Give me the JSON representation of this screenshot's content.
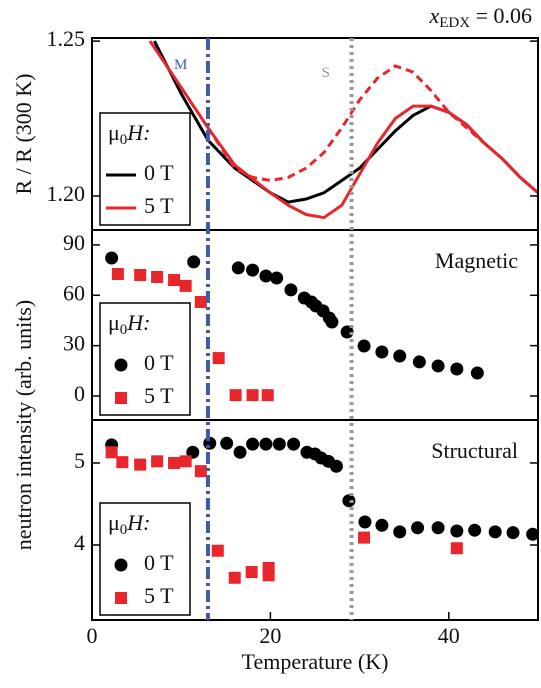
{
  "chart_data": [
    {
      "type": "line",
      "annotation": {
        "text": "x",
        "sub": "EDX",
        "rest": " = 0.06"
      },
      "y_label": "R / R (300 K)",
      "xlim": [
        0,
        50
      ],
      "ylim": [
        1.189,
        1.251
      ],
      "yticks": [
        {
          "value": 1.2,
          "label": "1.20"
        },
        1.25
      ],
      "vlines": [
        {
          "label": "T",
          "sub": "M",
          "x": 13,
          "color": "#3e5ba9",
          "style": "dashdot"
        },
        {
          "label": "T",
          "sub": "S",
          "x": 29.1,
          "color": "#999999",
          "style": "dotted"
        }
      ],
      "legend_title": {
        "text": "μ",
        "sub": "0",
        "rest": "H:"
      },
      "legend": "lower left",
      "series": [
        {
          "name": "0 T",
          "color": "#000000",
          "x": [
            7,
            10,
            13,
            16,
            20,
            22,
            24,
            26,
            28,
            30,
            32,
            34,
            36,
            38,
            40,
            42,
            44,
            46,
            48,
            50
          ],
          "values": [
            1.25,
            1.233,
            1.218,
            1.209,
            1.201,
            1.198,
            1.199,
            1.201,
            1.205,
            1.209,
            1.215,
            1.221,
            1.226,
            1.229,
            1.227,
            1.223,
            1.217,
            1.212,
            1.206,
            1.201
          ]
        },
        {
          "name": "5 T",
          "color": "#e8262b",
          "x": [
            6.5,
            10,
            13,
            16,
            20,
            22,
            24,
            26,
            28,
            30,
            32,
            34,
            36,
            38,
            40,
            42,
            44,
            46,
            48,
            50
          ],
          "values": [
            1.25,
            1.235,
            1.222,
            1.21,
            1.201,
            1.197,
            1.194,
            1.193,
            1.197,
            1.207,
            1.217,
            1.225,
            1.229,
            1.229,
            1.227,
            1.223,
            1.217,
            1.212,
            1.206,
            1.201
          ]
        },
        {
          "color": "#e8262b",
          "dash": true,
          "x": [
            13,
            16,
            18,
            20,
            22,
            24,
            26,
            28,
            30,
            32,
            34,
            36,
            38,
            40,
            42,
            44
          ],
          "values": [
            1.222,
            1.209,
            1.206,
            1.205,
            1.206,
            1.209,
            1.214,
            1.222,
            1.231,
            1.238,
            1.242,
            1.24,
            1.234,
            1.227,
            1.222,
            1.217
          ]
        }
      ]
    },
    {
      "type": "scatter",
      "panel_label": "Magnetic",
      "y_label": "neutron intensity (arb. units)",
      "xlim": [
        0,
        50
      ],
      "ylim": [
        -14.3,
        98.9
      ],
      "yticks": [
        0,
        30,
        60,
        90
      ],
      "legend_title": {
        "text": "μ",
        "sub": "0",
        "rest": "H:"
      },
      "legend": "lower left",
      "series": [
        {
          "name": "0 T",
          "color": "#000000",
          "marker": "circle",
          "x": [
            2.2,
            11.4,
            16.4,
            18,
            19.5,
            20.7,
            22.3,
            23.8,
            24.6,
            25.1,
            25.9,
            26.6,
            26.9,
            28.6,
            30.5,
            32.5,
            34.5,
            36.7,
            38.8,
            40.9,
            43.2
          ],
          "values": [
            82.2,
            79.9,
            76.3,
            75,
            71.5,
            70.3,
            63.2,
            58.4,
            56,
            53.6,
            50.7,
            46.5,
            44.1,
            38.1,
            29.8,
            26.2,
            23.8,
            20.3,
            17.9,
            16.1,
            13.7
          ]
        },
        {
          "name": "5 T",
          "color": "#e8262b",
          "marker": "square",
          "x": [
            2.9,
            5.4,
            7.3,
            9.2,
            10.5,
            12.2,
            14.2,
            16.1,
            18,
            19.7
          ],
          "values": [
            72.7,
            72.1,
            70.9,
            69.1,
            65.6,
            56,
            22.6,
            0.5,
            0.5,
            0.5
          ]
        }
      ]
    },
    {
      "type": "scatter",
      "panel_label": "Structural",
      "x_label": "Temperature (K)",
      "xlim": [
        0,
        50
      ],
      "xticks": [
        0,
        20,
        40
      ],
      "ylim": [
        3.085,
        5.524
      ],
      "yticks": [
        4,
        5
      ],
      "legend_title": {
        "text": "μ",
        "sub": "0",
        "rest": "H:"
      },
      "legend": "lower left",
      "series": [
        {
          "name": "0 T",
          "color": "#000000",
          "marker": "circle",
          "x": [
            2.2,
            11.3,
            13.2,
            15.1,
            16.6,
            18,
            19.5,
            21,
            22.6,
            24.1,
            25,
            25.7,
            26.5,
            27.4,
            28.8,
            30.6,
            32.5,
            34.5,
            36.5,
            38.8,
            40.9,
            42.9,
            45.2,
            47.2,
            49.4
          ],
          "values": [
            5.22,
            5.13,
            5.24,
            5.24,
            5.13,
            5.23,
            5.23,
            5.23,
            5.23,
            5.13,
            5.11,
            5.06,
            5.02,
            4.96,
            4.54,
            4.28,
            4.24,
            4.16,
            4.21,
            4.21,
            4.17,
            4.18,
            4.16,
            4.15,
            4.13
          ]
        },
        {
          "name": "5 T",
          "color": "#e8262b",
          "marker": "square",
          "x": [
            2.2,
            3.4,
            5.4,
            7.3,
            9.2,
            10.5,
            12.2,
            14.1,
            16,
            17.9,
            19.8,
            19.8,
            30.5,
            40.9
          ],
          "values": [
            5.13,
            5.01,
            4.98,
            5.02,
            5.0,
            5.02,
            4.9,
            3.93,
            3.6,
            3.67,
            3.72,
            3.63,
            4.09,
            3.96
          ]
        }
      ]
    }
  ]
}
